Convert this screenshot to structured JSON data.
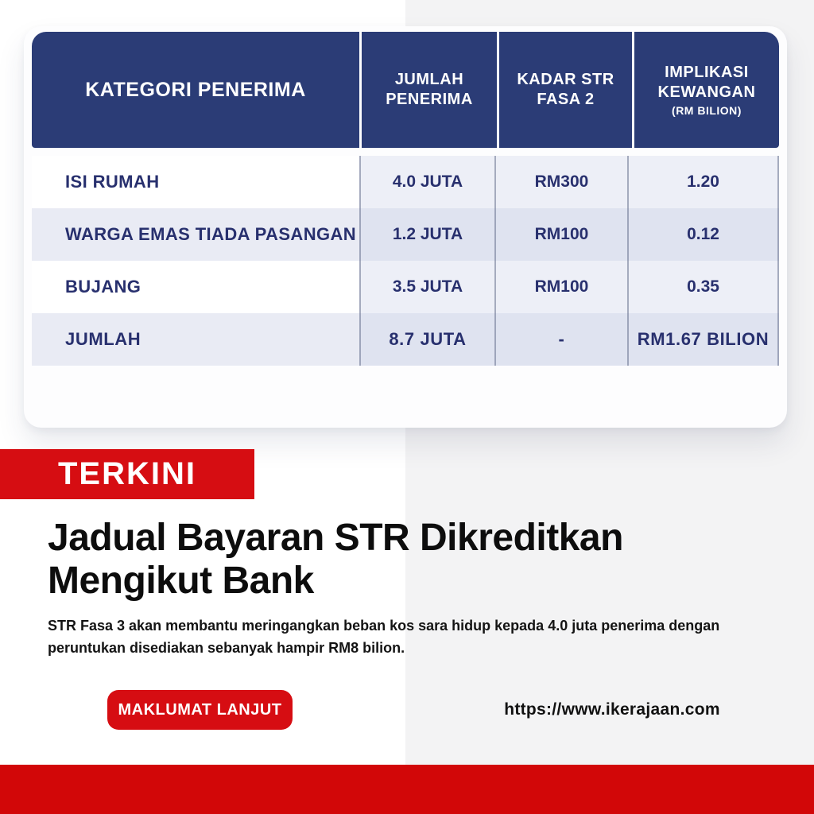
{
  "colors": {
    "header_navy": "#2b3c76",
    "cell_text_navy": "#28306e",
    "badge_red": "#d60d12",
    "bottom_bar_red": "#d20708",
    "right_panel_gray": "#f3f3f4"
  },
  "table": {
    "headers": {
      "col1": "KATEGORI PENERIMA",
      "col2": "JUMLAH\nPENERIMA",
      "col3": "KADAR STR\nFASA 2",
      "col4": "IMPLIKASI\nKEWANGAN",
      "col4_sub": "(RM BILION)"
    },
    "rows": [
      {
        "category": "ISI RUMAH",
        "jumlah_penerima": "4.0 JUTA",
        "kadar_str": "RM300",
        "implikasi": "1.20"
      },
      {
        "category": "WARGA EMAS TIADA PASANGAN",
        "jumlah_penerima": "1.2 JUTA",
        "kadar_str": "RM100",
        "implikasi": "0.12"
      },
      {
        "category": "BUJANG",
        "jumlah_penerima": "3.5 JUTA",
        "kadar_str": "RM100",
        "implikasi": "0.35"
      },
      {
        "category": "JUMLAH",
        "jumlah_penerima": "8.7 JUTA",
        "kadar_str": "-",
        "implikasi": "RM1.67 BILION"
      }
    ]
  },
  "badge": "TERKINI",
  "headline": "Jadual Bayaran STR Dikreditkan\nMengikut Bank",
  "description": "STR Fasa 3 akan membantu meringangkan beban kos sara hidup kepada 4.0 juta penerima dengan peruntukan disediakan sebanyak hampir RM8 bilion.",
  "cta_button": "MAKLUMAT LANJUT",
  "website_url": "https://www.ikerajaan.com"
}
